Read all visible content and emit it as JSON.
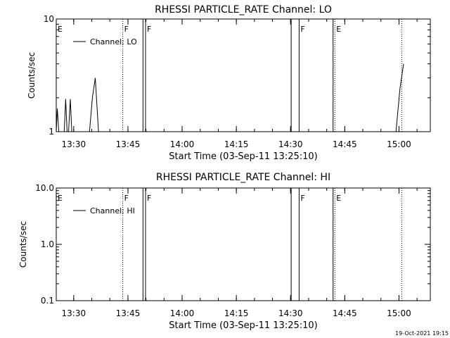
{
  "footer": {
    "timestamp": "19-Oct-2021 19:15"
  },
  "chart_data": [
    {
      "type": "line",
      "title": "RHESSI PARTICLE_RATE Channel: LO",
      "xlabel": "Start Time (03-Sep-11 13:25:10)",
      "ylabel": "Counts/sec",
      "yscale": "log",
      "ylim": [
        1,
        10
      ],
      "xlim_minutes": [
        0,
        103.5
      ],
      "y_ticks": [
        {
          "label": "1",
          "value": 1
        },
        {
          "label": "10",
          "value": 10
        }
      ],
      "x_ticks": [
        "13:30",
        "13:45",
        "14:00",
        "14:15",
        "14:30",
        "14:45",
        "15:00"
      ],
      "legend": {
        "label": "Channel: LO",
        "position": "top-left"
      },
      "flags": [
        {
          "label": "E",
          "minute": 0,
          "style": "solid"
        },
        {
          "label": "F",
          "minute": 18.4,
          "style": "dotted"
        },
        {
          "label": "F",
          "minute": 24.7,
          "style": "solid"
        },
        {
          "label": "F",
          "minute": 67.2,
          "style": "solid"
        },
        {
          "label": "E",
          "minute": 77.1,
          "style": "dotted"
        }
      ],
      "extra_lines": [
        {
          "minute": 24.0,
          "style": "solid"
        },
        {
          "minute": 65.0,
          "style": "solid"
        },
        {
          "minute": 76.6,
          "style": "solid"
        },
        {
          "minute": 95.6,
          "style": "dotted"
        }
      ],
      "series": [
        {
          "x": [
            0.0,
            0.3,
            0.7,
            1.1,
            2.2,
            2.6,
            3.0,
            3.4,
            3.9,
            4.3,
            4.7,
            5.2,
            9.2,
            10.0,
            10.8,
            11.7,
            94.0,
            95.1,
            96.1
          ],
          "y": [
            1.0,
            1.6,
            1.0,
            1.0,
            1.0,
            1.95,
            1.0,
            1.0,
            1.95,
            1.0,
            1.0,
            1.0,
            1.0,
            2.0,
            3.0,
            1.0,
            1.0,
            2.4,
            4.0
          ]
        }
      ]
    },
    {
      "type": "line",
      "title": "RHESSI PARTICLE_RATE Channel: HI",
      "xlabel": "Start Time (03-Sep-11 13:25:10)",
      "ylabel": "Counts/sec",
      "yscale": "log",
      "ylim": [
        0.1,
        10
      ],
      "xlim_minutes": [
        0,
        103.5
      ],
      "y_ticks": [
        {
          "label": "0.1",
          "value": 0.1
        },
        {
          "label": "1.0",
          "value": 1.0
        },
        {
          "label": "10.0",
          "value": 10.0
        }
      ],
      "x_ticks": [
        "13:30",
        "13:45",
        "14:00",
        "14:15",
        "14:30",
        "14:45",
        "15:00"
      ],
      "legend": {
        "label": "Channel: HI",
        "position": "top-left"
      },
      "flags": [
        {
          "label": "E",
          "minute": 0,
          "style": "solid"
        },
        {
          "label": "F",
          "minute": 18.4,
          "style": "dotted"
        },
        {
          "label": "F",
          "minute": 24.7,
          "style": "solid"
        },
        {
          "label": "F",
          "minute": 67.2,
          "style": "solid"
        },
        {
          "label": "E",
          "minute": 77.1,
          "style": "dotted"
        }
      ],
      "extra_lines": [
        {
          "minute": 24.0,
          "style": "solid"
        },
        {
          "minute": 65.0,
          "style": "solid"
        },
        {
          "minute": 76.6,
          "style": "solid"
        },
        {
          "minute": 95.6,
          "style": "dotted"
        }
      ],
      "series": [
        {
          "x": [],
          "y": []
        }
      ]
    }
  ]
}
